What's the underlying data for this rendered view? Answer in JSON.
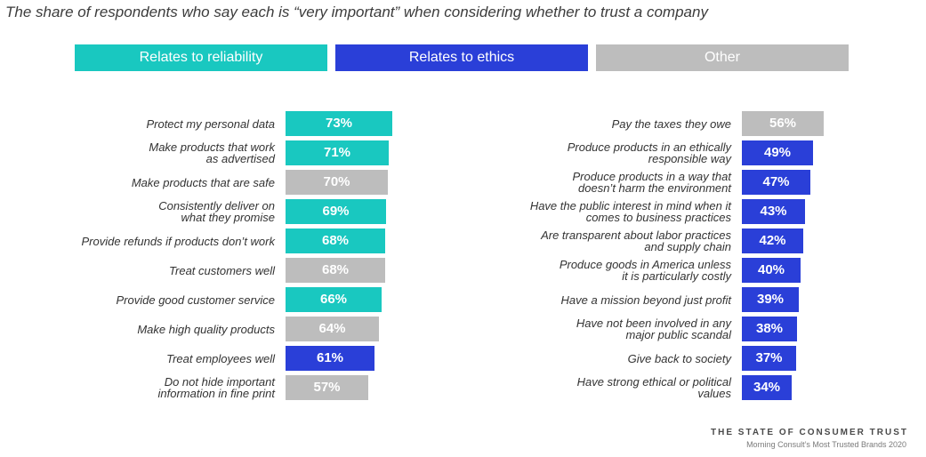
{
  "chart_data": {
    "type": "bar",
    "title": "The share of respondents who say each is “very important” when considering whether to trust a company",
    "unit": "%",
    "categories": [
      {
        "key": "reliability",
        "label": "Relates to reliability",
        "color": "#19C8C0"
      },
      {
        "key": "ethics",
        "label": "Relates to ethics",
        "color": "#2A3FD8"
      },
      {
        "key": "other",
        "label": "Other",
        "color": "#BDBDBD"
      }
    ],
    "xlim": [
      0,
      100
    ],
    "panels": [
      {
        "items": [
          {
            "label": [
              "Protect my personal data"
            ],
            "value": 73,
            "display": "73%",
            "category": "reliability"
          },
          {
            "label": [
              "Make products that work",
              "as advertised"
            ],
            "value": 71,
            "display": "71%",
            "category": "reliability"
          },
          {
            "label": [
              "Make products that are safe"
            ],
            "value": 70,
            "display": "70%",
            "category": "other"
          },
          {
            "label": [
              "Consistently deliver on",
              "what they promise"
            ],
            "value": 69,
            "display": "69%",
            "category": "reliability"
          },
          {
            "label": [
              "Provide refunds if products don’t work"
            ],
            "value": 68,
            "display": "68%",
            "category": "reliability"
          },
          {
            "label": [
              "Treat customers well"
            ],
            "value": 68,
            "display": "68%",
            "category": "other"
          },
          {
            "label": [
              "Provide good customer service"
            ],
            "value": 66,
            "display": "66%",
            "category": "reliability"
          },
          {
            "label": [
              "Make high quality products"
            ],
            "value": 64,
            "display": "64%",
            "category": "other"
          },
          {
            "label": [
              "Treat employees well"
            ],
            "value": 61,
            "display": "61%",
            "category": "ethics"
          },
          {
            "label": [
              "Do not hide important",
              "information in fine print"
            ],
            "value": 57,
            "display": "57%",
            "category": "other"
          }
        ]
      },
      {
        "items": [
          {
            "label": [
              "Pay the taxes they owe"
            ],
            "value": 56,
            "display": "56%",
            "category": "other"
          },
          {
            "label": [
              "Produce products in an ethically",
              "responsible way"
            ],
            "value": 49,
            "display": "49%",
            "category": "ethics"
          },
          {
            "label": [
              "Produce products in a way that",
              "doesn’t harm the environment"
            ],
            "value": 47,
            "display": "47%",
            "category": "ethics"
          },
          {
            "label": [
              "Have the public interest in mind when it",
              "comes to business  practices"
            ],
            "value": 43,
            "display": "43%",
            "category": "ethics"
          },
          {
            "label": [
              "Are transparent about labor practices",
              "and supply chain"
            ],
            "value": 42,
            "display": "42%",
            "category": "ethics"
          },
          {
            "label": [
              "Produce goods in America unless",
              "it is particularly costly"
            ],
            "value": 40,
            "display": "40%",
            "category": "ethics"
          },
          {
            "label": [
              "Have a mission beyond just profit"
            ],
            "value": 39,
            "display": "39%",
            "category": "ethics"
          },
          {
            "label": [
              "Have not been involved in any",
              "major public scandal"
            ],
            "value": 38,
            "display": "38%",
            "category": "ethics"
          },
          {
            "label": [
              "Give back to society"
            ],
            "value": 37,
            "display": "37%",
            "category": "ethics"
          },
          {
            "label": [
              "Have strong ethical or political",
              "values"
            ],
            "value": 34,
            "display": "34%",
            "category": "ethics"
          }
        ]
      }
    ]
  },
  "footer": {
    "title": "THE STATE OF CONSUMER TRUST",
    "subtitle": "Morning Consult’s Most Trusted Brands 2020"
  }
}
